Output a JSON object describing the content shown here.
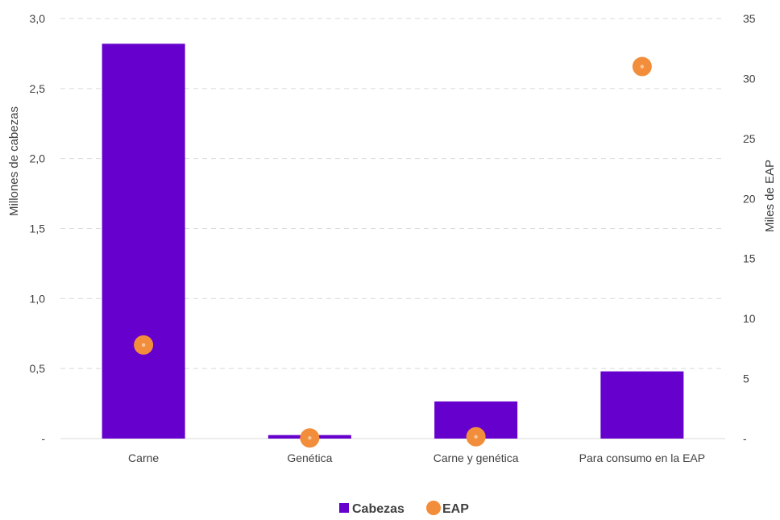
{
  "chart_data": {
    "type": "bar",
    "title": "",
    "categories": [
      "Carne",
      "Genética",
      "Carne y genética",
      "Para consumo en la EAP"
    ],
    "series": [
      {
        "name": "Cabezas",
        "kind": "bar",
        "axis": "left",
        "color": "#6600cc",
        "values": [
          2.82,
          0.025,
          0.265,
          0.48
        ]
      },
      {
        "name": "EAP",
        "kind": "scatter",
        "axis": "right",
        "color": "#f28e3b",
        "values": [
          7.8,
          0.05,
          0.15,
          31
        ]
      }
    ],
    "ylabel": "Millones de cabezas",
    "y2label": "Miles de EAP",
    "ylim": [
      0,
      3
    ],
    "y2lim": [
      0,
      35
    ],
    "yticks": [
      0,
      0.5,
      1,
      1.5,
      2,
      2.5,
      3
    ],
    "yticklabels": [
      "-",
      "0,5",
      "1,0",
      "1,5",
      "2,0",
      "2,5",
      "3,0"
    ],
    "y2ticks": [
      0,
      5,
      10,
      15,
      20,
      25,
      30,
      35
    ],
    "y2ticklabels": [
      "-",
      "5",
      "10",
      "15",
      "20",
      "25",
      "30",
      "35"
    ],
    "grid": true,
    "legend": "bottom-center"
  }
}
